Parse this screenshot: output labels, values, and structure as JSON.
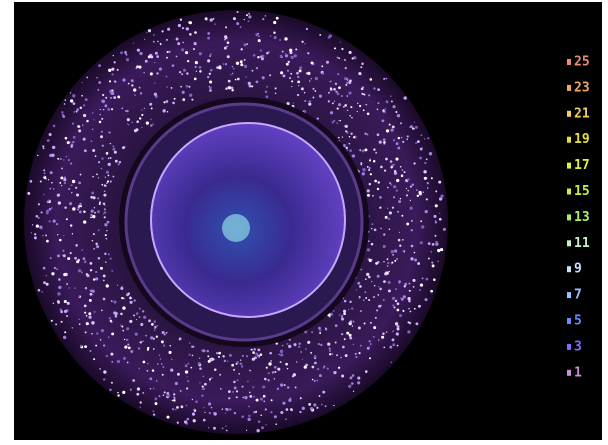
{
  "colorbar": {
    "labels": [
      25,
      23,
      21,
      19,
      17,
      15,
      13,
      11,
      9,
      7,
      5,
      3,
      1
    ],
    "colors": [
      "#f08a78",
      "#f0a860",
      "#f0d060",
      "#e8e040",
      "#e0f040",
      "#c8f040",
      "#a8f060",
      "#c8f0c8",
      "#c8e0ff",
      "#98c4ff",
      "#6a88ff",
      "#8a68ff",
      "#c890d8"
    ]
  }
}
